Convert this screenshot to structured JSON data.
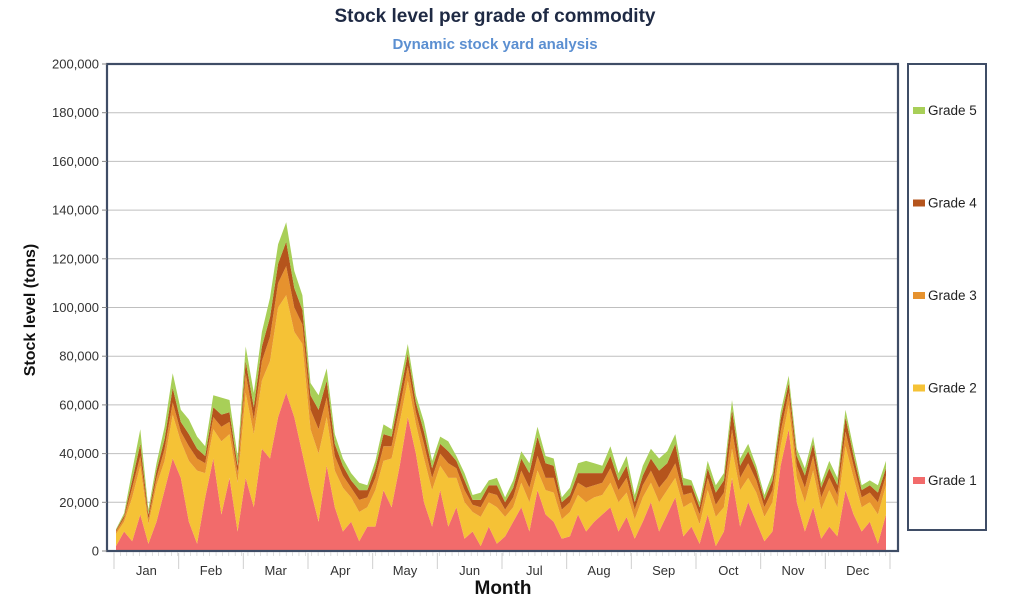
{
  "chart_data": {
    "type": "area",
    "stacked": true,
    "title": "Stock level per grade of commodity",
    "subtitle": "Dynamic stock yard analysis",
    "xlabel": "Month",
    "ylabel": "Stock level (tons)",
    "ylim": [
      0,
      200000
    ],
    "yticks": [
      0,
      20000,
      40000,
      60000,
      80000,
      100000,
      120000,
      140000,
      160000,
      180000,
      200000
    ],
    "ytick_labels": [
      "0",
      "20,000",
      "40,000",
      "60,000",
      "80,000",
      "100,000",
      "120,000",
      "140,000",
      "160,000",
      "180,000",
      "200,000"
    ],
    "categories": [
      "Jan",
      "Feb",
      "Mar",
      "Apr",
      "May",
      "Jun",
      "Jul",
      "Aug",
      "Sep",
      "Oct",
      "Nov",
      "Dec"
    ],
    "samples_per_month": 8,
    "grid": "horizontal",
    "legend_position": "right",
    "legend_order": [
      "Grade 5",
      "Grade 4",
      "Grade 3",
      "Grade 2",
      "Grade 1"
    ],
    "series": [
      {
        "name": "Grade 1",
        "color": "#f26b6b",
        "values": [
          2000,
          8000,
          4000,
          15000,
          3000,
          12000,
          25000,
          38000,
          30000,
          12000,
          3000,
          22000,
          38000,
          15000,
          30000,
          8000,
          30000,
          18000,
          42000,
          38000,
          55000,
          65000,
          55000,
          40000,
          25000,
          12000,
          35000,
          18000,
          8000,
          12000,
          4000,
          10000,
          10000,
          25000,
          18000,
          35000,
          55000,
          40000,
          20000,
          10000,
          25000,
          10000,
          18000,
          5000,
          8000,
          2000,
          10000,
          3000,
          6000,
          12000,
          18000,
          8000,
          25000,
          15000,
          12000,
          5000,
          6000,
          15000,
          8000,
          12000,
          15000,
          18000,
          8000,
          14000,
          5000,
          12000,
          20000,
          8000,
          15000,
          22000,
          6000,
          10000,
          3000,
          15000,
          2000,
          8000,
          30000,
          10000,
          20000,
          12000,
          4000,
          8000,
          35000,
          50000,
          20000,
          8000,
          18000,
          5000,
          10000,
          6000,
          25000,
          15000,
          8000,
          12000,
          3000,
          15000
        ]
      },
      {
        "name": "Grade 2",
        "color": "#f5c236",
        "values": [
          5000,
          4000,
          18000,
          20000,
          8000,
          15000,
          12000,
          18000,
          15000,
          25000,
          30000,
          10000,
          12000,
          30000,
          18000,
          20000,
          35000,
          30000,
          28000,
          40000,
          45000,
          40000,
          35000,
          45000,
          25000,
          28000,
          20000,
          15000,
          18000,
          10000,
          12000,
          8000,
          15000,
          12000,
          20000,
          18000,
          15000,
          12000,
          18000,
          15000,
          10000,
          20000,
          12000,
          15000,
          8000,
          12000,
          10000,
          15000,
          8000,
          6000,
          10000,
          12000,
          8000,
          10000,
          12000,
          8000,
          10000,
          8000,
          12000,
          10000,
          8000,
          10000,
          12000,
          10000,
          8000,
          10000,
          8000,
          12000,
          10000,
          8000,
          12000,
          10000,
          8000,
          10000,
          12000,
          10000,
          12000,
          15000,
          10000,
          12000,
          10000,
          12000,
          8000,
          10000,
          10000,
          12000,
          15000,
          12000,
          15000,
          12000,
          18000,
          15000,
          10000,
          8000,
          12000,
          12000
        ]
      },
      {
        "name": "Grade 3",
        "color": "#e6922e",
        "values": [
          1000,
          1500,
          4000,
          4000,
          2000,
          3000,
          5000,
          5000,
          4000,
          6000,
          5000,
          4000,
          5000,
          6000,
          5000,
          4000,
          8000,
          6000,
          8000,
          10000,
          10000,
          12000,
          10000,
          8000,
          8000,
          10000,
          8000,
          6000,
          5000,
          4000,
          5000,
          4000,
          5000,
          6000,
          5000,
          6000,
          6000,
          5000,
          6000,
          5000,
          5000,
          6000,
          4000,
          5000,
          3000,
          4000,
          4000,
          5000,
          3000,
          4000,
          5000,
          6000,
          6000,
          5000,
          6000,
          4000,
          4000,
          5000,
          6000,
          5000,
          5000,
          6000,
          5000,
          6000,
          4000,
          5000,
          5000,
          6000,
          5000,
          6000,
          5000,
          4000,
          4000,
          5000,
          5000,
          6000,
          8000,
          5000,
          6000,
          5000,
          4000,
          5000,
          6000,
          5000,
          5000,
          6000,
          6000,
          5000,
          5000,
          5000,
          6000,
          5000,
          4000,
          4000,
          5000,
          4000
        ]
      },
      {
        "name": "Grade 4",
        "color": "#b5541c",
        "values": [
          500,
          1000,
          3000,
          5000,
          2000,
          3000,
          4000,
          6000,
          4000,
          5000,
          4000,
          3000,
          4000,
          5000,
          4000,
          3000,
          5000,
          5000,
          6000,
          8000,
          8000,
          10000,
          8000,
          6000,
          6000,
          8000,
          7000,
          5000,
          4000,
          3000,
          4000,
          3000,
          4000,
          5000,
          4000,
          5000,
          5000,
          4000,
          5000,
          4000,
          4000,
          5000,
          3000,
          4000,
          2000,
          3000,
          3000,
          4000,
          3000,
          4000,
          5000,
          6000,
          8000,
          6000,
          5000,
          3000,
          3000,
          4000,
          6000,
          5000,
          4000,
          5000,
          4000,
          5000,
          3000,
          4000,
          5000,
          7000,
          6000,
          8000,
          4000,
          3000,
          3000,
          4000,
          5000,
          5000,
          8000,
          5000,
          5000,
          4000,
          3000,
          4000,
          5000,
          4000,
          4000,
          5000,
          5000,
          4000,
          4000,
          4000,
          6000,
          4000,
          3000,
          3000,
          4000,
          3000
        ]
      },
      {
        "name": "Grade 5",
        "color": "#a8cf58",
        "values": [
          500,
          1000,
          4000,
          6000,
          2000,
          3000,
          5000,
          6000,
          5000,
          6000,
          5000,
          4000,
          5000,
          7000,
          5000,
          4000,
          6000,
          6000,
          6000,
          8000,
          8000,
          8000,
          7000,
          6000,
          5000,
          6000,
          5000,
          4000,
          3000,
          3000,
          3000,
          2000,
          3000,
          4000,
          3000,
          4000,
          4000,
          3000,
          4000,
          3000,
          3000,
          4000,
          2000,
          3000,
          2000,
          3000,
          2000,
          3000,
          2000,
          3000,
          3000,
          4000,
          4000,
          3000,
          3000,
          2000,
          3000,
          4000,
          5000,
          4000,
          3000,
          4000,
          3000,
          4000,
          3000,
          4000,
          4000,
          5000,
          5000,
          4000,
          3000,
          2000,
          2000,
          3000,
          3000,
          3000,
          4000,
          3000,
          3000,
          2000,
          2000,
          3000,
          3000,
          3000,
          3000,
          3000,
          3000,
          2000,
          3000,
          3000,
          3000,
          3000,
          2000,
          2000,
          3000,
          3000
        ]
      }
    ]
  }
}
